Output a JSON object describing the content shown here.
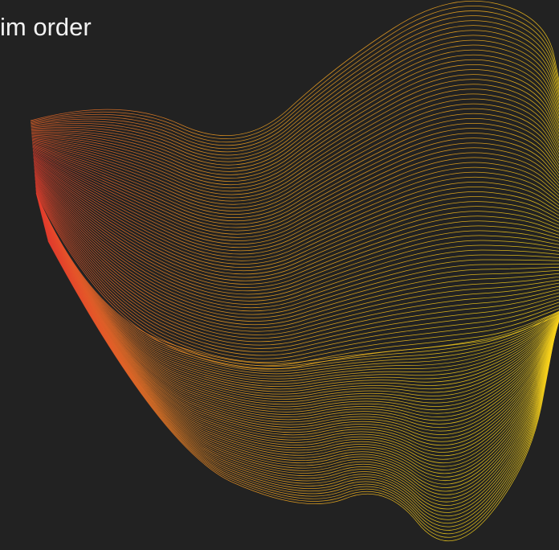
{
  "slide": {
    "heading": "im order"
  },
  "colors": {
    "background": "#222222",
    "text": "#f2f2f2",
    "wave_gradient": [
      "#e33b2c",
      "#ec6a27",
      "#f39a22",
      "#f6bd1c",
      "#f8d21a"
    ]
  },
  "decoration": {
    "name": "abstract-line-wave"
  }
}
